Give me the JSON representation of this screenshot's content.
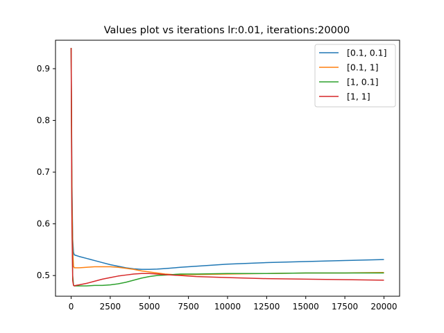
{
  "chart_data": {
    "type": "line",
    "title": "Values plot vs iterations lr:0.01, iterations:20000",
    "xlabel": "",
    "ylabel": "",
    "xlim": [
      -1000,
      21000
    ],
    "ylim": [
      0.46,
      0.955
    ],
    "x_ticks": [
      0,
      2500,
      5000,
      7500,
      10000,
      12500,
      15000,
      17500,
      20000
    ],
    "y_ticks": [
      0.5,
      0.6,
      0.7,
      0.8,
      0.9
    ],
    "grid": false,
    "legend_position": "top-right",
    "series": [
      {
        "name": "[0.1, 0.1]",
        "color": "#1f77b4",
        "x": [
          0,
          20,
          50,
          100,
          150,
          200,
          300,
          500,
          1000,
          1500,
          2000,
          2500,
          3000,
          3500,
          4000,
          4500,
          5000,
          5500,
          6000,
          7000,
          8000,
          9000,
          10000,
          12500,
          15000,
          17500,
          20000
        ],
        "y": [
          0.94,
          0.84,
          0.68,
          0.57,
          0.545,
          0.54,
          0.539,
          0.537,
          0.533,
          0.529,
          0.525,
          0.521,
          0.518,
          0.515,
          0.513,
          0.512,
          0.512,
          0.5125,
          0.5135,
          0.516,
          0.518,
          0.52,
          0.522,
          0.525,
          0.527,
          0.529,
          0.531
        ]
      },
      {
        "name": "[0.1, 1]",
        "color": "#ff7f0e",
        "x": [
          0,
          20,
          50,
          100,
          150,
          200,
          300,
          500,
          1000,
          1500,
          2000,
          2500,
          3000,
          3500,
          4000,
          4500,
          5000,
          5500,
          6000,
          6500,
          7000,
          8000,
          10000,
          12500,
          15000,
          17500,
          20000
        ],
        "y": [
          0.94,
          0.83,
          0.66,
          0.55,
          0.518,
          0.515,
          0.515,
          0.515,
          0.516,
          0.517,
          0.517,
          0.517,
          0.516,
          0.514,
          0.512,
          0.509,
          0.507,
          0.505,
          0.503,
          0.502,
          0.502,
          0.502,
          0.503,
          0.504,
          0.505,
          0.505,
          0.506
        ]
      },
      {
        "name": "[1, 0.1]",
        "color": "#2ca02c",
        "x": [
          0,
          20,
          50,
          100,
          150,
          200,
          300,
          500,
          1000,
          1500,
          2000,
          2500,
          3000,
          3500,
          4000,
          4500,
          5000,
          5500,
          6000,
          6500,
          7000,
          8000,
          10000,
          12500,
          15000,
          17500,
          20000
        ],
        "y": [
          0.94,
          0.8,
          0.62,
          0.5,
          0.482,
          0.48,
          0.48,
          0.48,
          0.48,
          0.481,
          0.481,
          0.482,
          0.484,
          0.487,
          0.491,
          0.495,
          0.498,
          0.5,
          0.501,
          0.502,
          0.503,
          0.503,
          0.504,
          0.504,
          0.505,
          0.505,
          0.505
        ]
      },
      {
        "name": "[1, 1]",
        "color": "#d62728",
        "x": [
          0,
          20,
          50,
          100,
          150,
          200,
          300,
          500,
          1000,
          1500,
          2000,
          2500,
          3000,
          3500,
          4000,
          4500,
          5000,
          5500,
          6000,
          6500,
          7000,
          8000,
          10000,
          12500,
          15000,
          17500,
          20000
        ],
        "y": [
          0.94,
          0.79,
          0.6,
          0.49,
          0.481,
          0.48,
          0.481,
          0.482,
          0.485,
          0.489,
          0.493,
          0.496,
          0.499,
          0.501,
          0.503,
          0.504,
          0.504,
          0.503,
          0.502,
          0.501,
          0.5,
          0.498,
          0.496,
          0.494,
          0.493,
          0.492,
          0.491
        ]
      }
    ]
  }
}
